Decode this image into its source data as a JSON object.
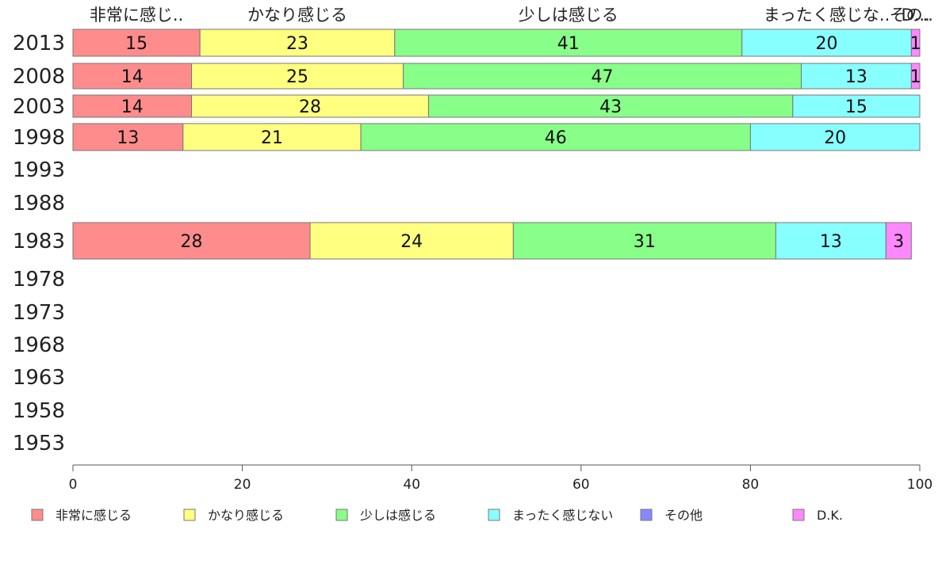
{
  "chart_data": {
    "type": "bar",
    "orientation": "horizontal-stacked",
    "years": [
      "2013",
      "2008",
      "2003",
      "1998",
      "1993",
      "1988",
      "1983",
      "1978",
      "1973",
      "1968",
      "1963",
      "1958",
      "1953"
    ],
    "series": [
      {
        "name": "非常に感じる",
        "header": "非常に感じ..",
        "color": "#ff8c8c",
        "values": [
          15,
          14,
          14,
          13,
          null,
          null,
          28,
          null,
          null,
          null,
          null,
          null,
          null
        ]
      },
      {
        "name": "かなり感じる",
        "header": "かなり感じる",
        "color": "#ffff80",
        "values": [
          23,
          25,
          28,
          21,
          null,
          null,
          24,
          null,
          null,
          null,
          null,
          null,
          null
        ]
      },
      {
        "name": "少しは感じる",
        "header": "少しは感じる",
        "color": "#88ff88",
        "values": [
          41,
          47,
          43,
          46,
          null,
          null,
          31,
          null,
          null,
          null,
          null,
          null,
          null
        ]
      },
      {
        "name": "まったく感じない",
        "header": "まったく感じな..",
        "color": "#88ffff",
        "values": [
          20,
          13,
          15,
          20,
          null,
          null,
          13,
          null,
          null,
          null,
          null,
          null,
          null
        ]
      },
      {
        "name": "その他",
        "header": "その..",
        "color": "#8888ff",
        "values": [
          0,
          0,
          0,
          0,
          null,
          null,
          0,
          null,
          null,
          null,
          null,
          null,
          null
        ]
      },
      {
        "name": "D.K.",
        "header": "D...",
        "color": "#ff88ff",
        "values": [
          1,
          1,
          0,
          0,
          null,
          null,
          3,
          null,
          null,
          null,
          null,
          null,
          null
        ]
      }
    ],
    "xlim": [
      0,
      100
    ],
    "xticks": [
      "0",
      "20",
      "40",
      "60",
      "80",
      "100"
    ],
    "legend_position": "bottom",
    "grid": false
  }
}
